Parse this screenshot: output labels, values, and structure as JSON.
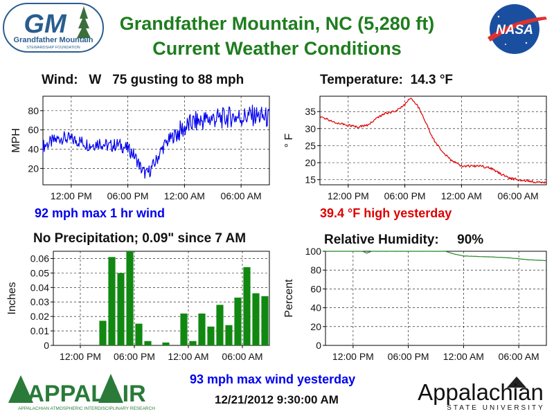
{
  "header": {
    "title_line1": "Grandfather Mountain, NC  (5,280 ft)",
    "title_line2": "Current Weather Conditions",
    "gm_logo": {
      "letters": "GM",
      "line1": "Grandfather Mountain",
      "line2": "STEWARDSHIP FOUNDATION"
    },
    "nasa_logo": "NASA"
  },
  "footer": {
    "max_wind_yesterday": "93 mph max wind yesterday",
    "timestamp": "12/21/2012 9:30:00 AM",
    "appalair_logo": {
      "name": "APPALAIR",
      "tagline": "APPALACHIAN ATMOSPHERIC INTERDISCIPLINARY RESEARCH"
    },
    "appalachian_logo": {
      "name": "Appalachian",
      "tagline": "STATE UNIVERSITY"
    }
  },
  "colors": {
    "title": "#1e7d1e",
    "wind": "#0000ee",
    "temperature": "#dd0000",
    "precip": "#118811",
    "humidity": "#228822"
  },
  "chart_data": [
    {
      "id": "wind",
      "type": "line",
      "title": "Wind:   W   75 gusting to 88 mph",
      "ylabel": "MPH",
      "xlabel": "",
      "ylim": [
        3,
        95
      ],
      "yticks": [
        20,
        40,
        60,
        80
      ],
      "xlim": [
        0,
        24
      ],
      "xticks": [
        {
          "x": 3,
          "label": "12:00 PM"
        },
        {
          "x": 9,
          "label": "06:00 PM"
        },
        {
          "x": 15,
          "label": "12:00 AM"
        },
        {
          "x": 21,
          "label": "06:00 AM"
        }
      ],
      "grid": true,
      "color": "#0000ee",
      "note": "92 mph max 1 hr wind",
      "series": [
        {
          "x": [
            0,
            1,
            2,
            3,
            4,
            5,
            6,
            7,
            8,
            9,
            9.5,
            10,
            10.5,
            11,
            11.5,
            12,
            12.5,
            13,
            14,
            15,
            16,
            17,
            18,
            19,
            20,
            21,
            22,
            23,
            24
          ],
          "values": [
            43,
            48,
            52,
            50,
            48,
            44,
            47,
            43,
            45,
            40,
            36,
            28,
            18,
            14,
            20,
            28,
            38,
            46,
            55,
            62,
            68,
            70,
            72,
            72,
            74,
            73,
            75,
            74,
            72
          ]
        }
      ]
    },
    {
      "id": "temperature",
      "type": "line",
      "title": "Temperature:  14.3 °F",
      "ylabel": "° F",
      "xlabel": "",
      "ylim": [
        13.5,
        39.5
      ],
      "yticks": [
        15,
        20,
        25,
        30,
        35
      ],
      "xlim": [
        0,
        24
      ],
      "xticks": [
        {
          "x": 3,
          "label": "12:00 PM"
        },
        {
          "x": 9,
          "label": "06:00 PM"
        },
        {
          "x": 15,
          "label": "12:00 AM"
        },
        {
          "x": 21,
          "label": "06:00 AM"
        }
      ],
      "grid": true,
      "color": "#dd0000",
      "note": "39.4 °F high yesterday",
      "series": [
        {
          "x": [
            0,
            1,
            2,
            3,
            4,
            5,
            6,
            7,
            8,
            9,
            9.5,
            10,
            10.5,
            11,
            12,
            13,
            14,
            15,
            16,
            17,
            18,
            19,
            20,
            21,
            22,
            23,
            24
          ],
          "values": [
            33.5,
            32.5,
            31.5,
            31,
            30.5,
            31,
            33,
            34.5,
            35,
            37,
            39,
            38,
            36,
            33,
            27,
            23,
            20.5,
            19,
            19,
            19,
            18.5,
            17,
            15.5,
            15,
            14.7,
            14.3,
            14.2
          ]
        }
      ]
    },
    {
      "id": "precipitation",
      "type": "bar",
      "title": "No Precipitation; 0.09\" since 7 AM",
      "ylabel": "Inches",
      "xlabel": "",
      "ylim": [
        0,
        0.065
      ],
      "yticks": [
        0,
        0.01,
        0.02,
        0.03,
        0.04,
        0.05,
        0.06
      ],
      "xlim": [
        0,
        24
      ],
      "xticks": [
        {
          "x": 3,
          "label": "12:00 PM"
        },
        {
          "x": 9,
          "label": "06:00 PM"
        },
        {
          "x": 15,
          "label": "12:00 AM"
        },
        {
          "x": 21,
          "label": "06:00 AM"
        }
      ],
      "grid": true,
      "color": "#118811",
      "bar_x": [
        5.5,
        6.5,
        7.5,
        8.5,
        9.5,
        10.5,
        12.5,
        14.5,
        15.5,
        16.5,
        17.5,
        18.5,
        19.5,
        20.5,
        21.5,
        22.5,
        23.5
      ],
      "values": [
        0.017,
        0.061,
        0.05,
        0.065,
        0.015,
        0.003,
        0.002,
        0.022,
        0.003,
        0.022,
        0.013,
        0.028,
        0.014,
        0.033,
        0.054,
        0.036,
        0.034
      ]
    },
    {
      "id": "humidity",
      "type": "line",
      "title": "Relative Humidity:     90%",
      "ylabel": "Percent",
      "xlabel": "",
      "ylim": [
        0,
        100
      ],
      "yticks": [
        0,
        20,
        40,
        60,
        80,
        100
      ],
      "xlim": [
        0,
        24
      ],
      "xticks": [
        {
          "x": 3,
          "label": "12:00 PM"
        },
        {
          "x": 9,
          "label": "06:00 PM"
        },
        {
          "x": 15,
          "label": "12:00 AM"
        },
        {
          "x": 21,
          "label": "06:00 AM"
        }
      ],
      "grid": true,
      "color": "#228822",
      "series": [
        {
          "x": [
            0,
            2,
            4,
            4.5,
            5,
            8,
            12,
            13,
            14,
            15,
            18,
            20,
            22,
            24
          ],
          "values": [
            100,
            100,
            100,
            98,
            100,
            100,
            100,
            100,
            97,
            95,
            94,
            93,
            91,
            90
          ]
        }
      ]
    }
  ]
}
